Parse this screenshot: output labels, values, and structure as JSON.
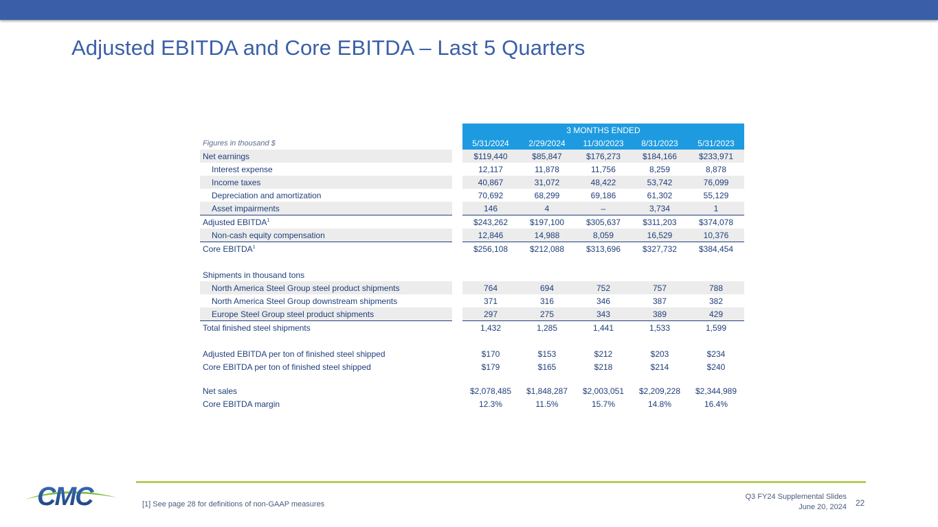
{
  "header": {
    "title": "Adjusted EBITDA and Core EBITDA – Last 5 Quarters"
  },
  "table": {
    "band_title": "3 MONTHS ENDED",
    "figures_label": "Figures in thousand $",
    "columns": [
      "5/31/2024",
      "2/29/2024",
      "11/30/2023",
      "8/31/2023",
      "5/31/2023"
    ],
    "rows": {
      "net_earnings": {
        "label": "Net earnings",
        "values": [
          "$119,440",
          "$85,847",
          "$176,273",
          "$184,166",
          "$233,971"
        ]
      },
      "interest_expense": {
        "label": "Interest expense",
        "values": [
          "12,117",
          "11,878",
          "11,756",
          "8,259",
          "8,878"
        ]
      },
      "income_taxes": {
        "label": "Income taxes",
        "values": [
          "40,867",
          "31,072",
          "48,422",
          "53,742",
          "76,099"
        ]
      },
      "depreciation": {
        "label": "Depreciation and amortization",
        "values": [
          "70,692",
          "68,299",
          "69,186",
          "61,302",
          "55,129"
        ]
      },
      "asset_impairments": {
        "label": "Asset impairments",
        "values": [
          "146",
          "4",
          "–",
          "3,734",
          "1"
        ]
      },
      "adjusted_ebitda": {
        "label": "Adjusted EBITDA",
        "sup": "1",
        "values": [
          "$243,262",
          "$197,100",
          "$305,637",
          "$311,203",
          "$374,078"
        ]
      },
      "non_cash_equity": {
        "label": "Non-cash equity compensation",
        "values": [
          "12,846",
          "14,988",
          "8,059",
          "16,529",
          "10,376"
        ]
      },
      "core_ebitda": {
        "label": "Core EBITDA",
        "sup": "1",
        "values": [
          "$256,108",
          "$212,088",
          "$313,696",
          "$327,732",
          "$384,454"
        ]
      },
      "shipments_heading": {
        "label": "Shipments in thousand tons"
      },
      "na_steel_product": {
        "label": "North America Steel Group steel product shipments",
        "values": [
          "764",
          "694",
          "752",
          "757",
          "788"
        ]
      },
      "na_downstream": {
        "label": "North America Steel Group downstream shipments",
        "values": [
          "371",
          "316",
          "346",
          "387",
          "382"
        ]
      },
      "europe_steel_product": {
        "label": "Europe Steel Group steel product shipments",
        "values": [
          "297",
          "275",
          "343",
          "389",
          "429"
        ]
      },
      "total_finished": {
        "label": "Total finished steel shipments",
        "values": [
          "1,432",
          "1,285",
          "1,441",
          "1,533",
          "1,599"
        ]
      },
      "adj_ebitda_per_ton": {
        "label": "Adjusted EBITDA per ton of finished steel shipped",
        "values": [
          "$170",
          "$153",
          "$212",
          "$203",
          "$234"
        ]
      },
      "core_ebitda_per_ton": {
        "label": "Core EBITDA per ton of finished steel shipped",
        "values": [
          "$179",
          "$165",
          "$218",
          "$214",
          "$240"
        ]
      },
      "net_sales": {
        "label": "Net sales",
        "values": [
          "$2,078,485",
          "$1,848,287",
          "$2,003,051",
          "$2,209,228",
          "$2,344,989"
        ]
      },
      "core_ebitda_margin": {
        "label": "Core EBITDA margin",
        "values": [
          "12.3%",
          "11.5%",
          "15.7%",
          "14.8%",
          "16.4%"
        ]
      }
    }
  },
  "footer": {
    "footnote": "[1] See page 28 for definitions of non-GAAP measures",
    "deck_title": "Q3 FY24 Supplemental Slides",
    "date": "June 20, 2024",
    "page_number": "22",
    "logo_text": "CMC"
  },
  "colors": {
    "brand_blue": "#3a5fa8",
    "header_band": "#1e9be0",
    "accent_green": "#b7cc5a",
    "logo_green": "#7fbf3f"
  }
}
